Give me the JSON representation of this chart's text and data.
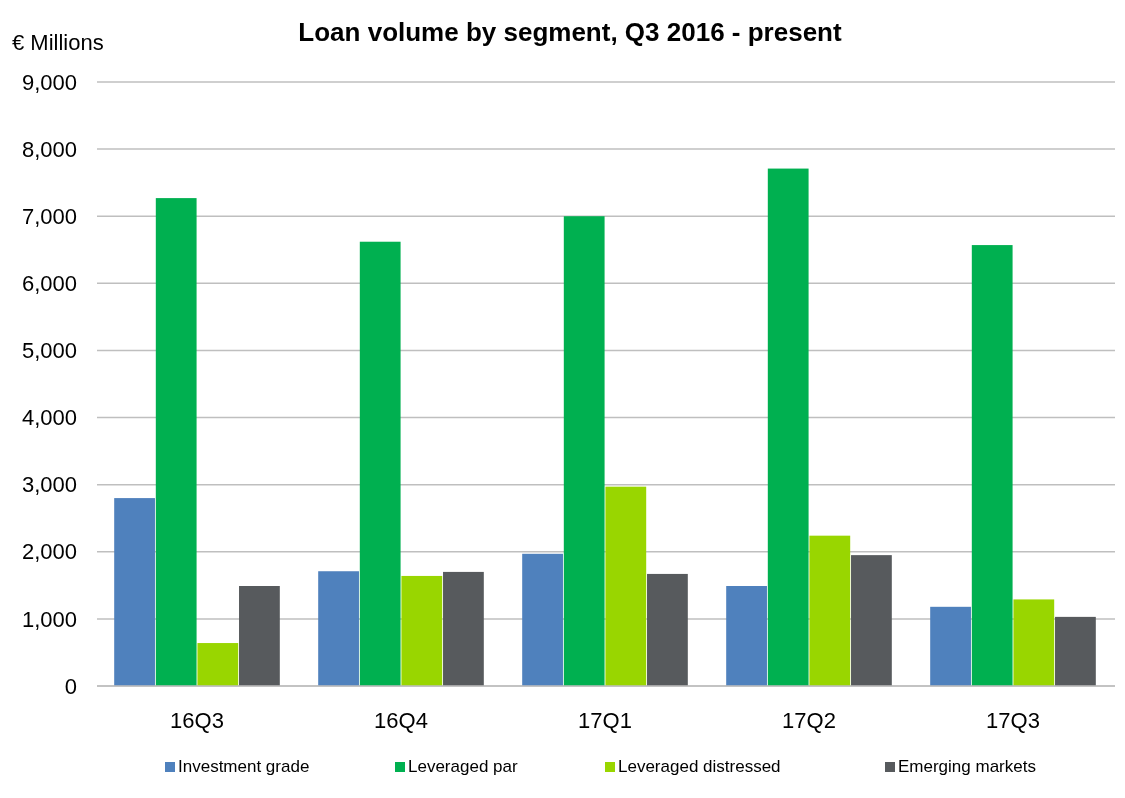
{
  "chart_data": {
    "type": "bar",
    "title": "Loan volume by segment, Q3 2016 - present",
    "ylabel": "€ Millions",
    "categories": [
      "16Q3",
      "16Q4",
      "17Q1",
      "17Q2",
      "17Q3"
    ],
    "series": [
      {
        "name": "Investment grade",
        "color": "#4f81bd",
        "values": [
          2800,
          1710,
          1970,
          1490,
          1180
        ]
      },
      {
        "name": "Leveraged par",
        "color": "#00b050",
        "values": [
          7270,
          6620,
          7000,
          7710,
          6570
        ]
      },
      {
        "name": "Leveraged distressed",
        "color": "#99d600",
        "values": [
          640,
          1640,
          2970,
          2240,
          1290
        ]
      },
      {
        "name": "Emerging markets",
        "color": "#575a5d",
        "values": [
          1490,
          1700,
          1670,
          1950,
          1030
        ]
      }
    ],
    "ylim": [
      0,
      9000
    ],
    "yticks": [
      {
        "value": 0,
        "label": "0"
      },
      {
        "value": 1000,
        "label": "1,000"
      },
      {
        "value": 2000,
        "label": "2,000"
      },
      {
        "value": 3000,
        "label": "3,000"
      },
      {
        "value": 4000,
        "label": "4,000"
      },
      {
        "value": 5000,
        "label": "5,000"
      },
      {
        "value": 6000,
        "label": "6,000"
      },
      {
        "value": 7000,
        "label": "7,000"
      },
      {
        "value": 8000,
        "label": "8,000"
      },
      {
        "value": 9000,
        "label": "9,000"
      }
    ],
    "grid": "y",
    "legend": "bottom"
  }
}
